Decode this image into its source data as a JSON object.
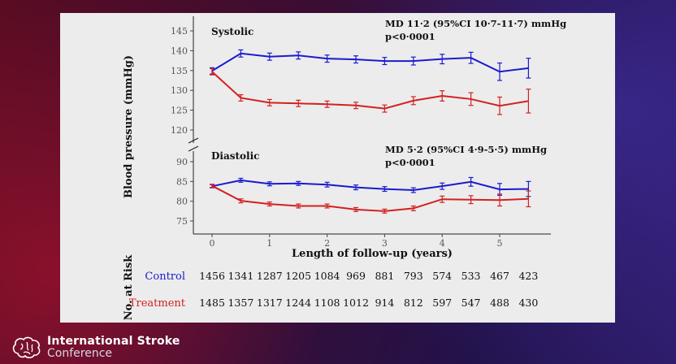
{
  "branding": {
    "line1": "International Stroke",
    "line2": "Conference",
    "logo_icon": "brain-icon"
  },
  "chart_data": {
    "type": "line",
    "ylabel": "Blood pressure (mmHg)",
    "xlabel": "Length of follow-up (years)",
    "x_ticks": [
      0,
      1,
      2,
      3,
      4,
      5
    ],
    "x_ticks_labels": [
      "0",
      "1",
      "2",
      "3",
      "4",
      "5"
    ],
    "xlim": [
      -0.4,
      5.9
    ],
    "x": [
      0,
      0.5,
      1,
      1.5,
      2,
      2.5,
      3,
      3.5,
      4,
      4.5,
      5,
      5.5
    ],
    "colors": {
      "control": "#1a1ad0",
      "treatment": "#d42020"
    },
    "panels": [
      {
        "key": "systolic",
        "title": "Systolic",
        "annotation": "MD 11·2 (95%CI 10·7-11·7) mmHg",
        "pvalue": "p<0·0001",
        "ylim": [
          116,
          146
        ],
        "y_ticks": [
          120,
          125,
          130,
          135,
          140,
          145
        ],
        "y_tick_labels": [
          "120",
          "125",
          "130",
          "135",
          "140",
          "145"
        ],
        "series": [
          {
            "name": "Control",
            "color": "#1a1ad0",
            "values": [
              134.9,
              139.3,
              138.5,
              138.8,
              138.0,
              137.8,
              137.4,
              137.4,
              137.9,
              138.2,
              134.7,
              135.6
            ],
            "err": [
              0.8,
              0.9,
              0.9,
              0.9,
              0.9,
              0.9,
              0.9,
              1.0,
              1.2,
              1.4,
              2.2,
              2.5
            ]
          },
          {
            "name": "Treatment",
            "color": "#d42020",
            "values": [
              134.7,
              128.1,
              126.9,
              126.7,
              126.5,
              126.2,
              125.4,
              127.4,
              128.6,
              127.8,
              126.1,
              127.3
            ],
            "err": [
              0.8,
              0.8,
              0.8,
              0.8,
              0.8,
              0.8,
              0.9,
              1.0,
              1.3,
              1.6,
              2.2,
              3.0
            ]
          }
        ]
      },
      {
        "key": "diastolic",
        "title": "Diastolic",
        "annotation": "MD 5·2 (95%CI 4·9-5·5) mmHg",
        "pvalue": "p<0·0001",
        "ylim": [
          72,
          96
        ],
        "y_ticks": [
          75,
          80,
          85,
          90
        ],
        "y_tick_labels": [
          "75",
          "80",
          "85",
          "90"
        ],
        "series": [
          {
            "name": "Control",
            "color": "#1a1ad0",
            "values": [
              83.8,
              85.3,
              84.4,
              84.5,
              84.2,
              83.5,
              83.1,
              82.8,
              83.8,
              84.9,
              83.0,
              83.1
            ],
            "err": [
              0.4,
              0.5,
              0.5,
              0.5,
              0.6,
              0.6,
              0.6,
              0.6,
              0.8,
              1.1,
              1.5,
              1.9
            ]
          },
          {
            "name": "Treatment",
            "color": "#d42020",
            "values": [
              83.9,
              80.1,
              79.3,
              78.8,
              78.8,
              77.9,
              77.5,
              78.2,
              80.5,
              80.4,
              80.3,
              80.6
            ],
            "err": [
              0.4,
              0.5,
              0.5,
              0.5,
              0.5,
              0.5,
              0.5,
              0.6,
              0.8,
              1.0,
              1.5,
              2.0
            ]
          }
        ]
      }
    ],
    "at_risk": {
      "label": "No. at Risk",
      "rows": [
        {
          "name": "Control",
          "color": "#1a1ad0",
          "values": [
            "1456",
            "1341",
            "1287",
            "1205",
            "1084",
            "969",
            "881",
            "793",
            "574",
            "533",
            "467",
            "423"
          ]
        },
        {
          "name": "Treatment",
          "color": "#d42020",
          "values": [
            "1485",
            "1357",
            "1317",
            "1244",
            "1108",
            "1012",
            "914",
            "812",
            "597",
            "547",
            "488",
            "430"
          ]
        }
      ]
    }
  }
}
